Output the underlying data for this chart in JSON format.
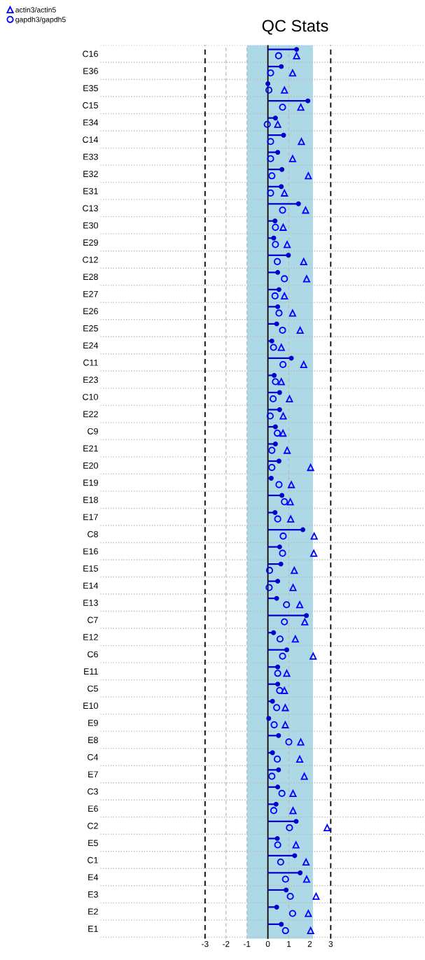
{
  "chart_data": {
    "type": "lollipop",
    "title": "QC Stats",
    "orientation": "horizontal",
    "categories": [
      "C16",
      "E36",
      "E35",
      "C15",
      "E34",
      "C14",
      "E33",
      "E32",
      "E31",
      "C13",
      "E30",
      "E29",
      "C12",
      "E28",
      "E27",
      "E26",
      "E25",
      "E24",
      "C11",
      "E23",
      "C10",
      "E22",
      "C9",
      "E21",
      "E20",
      "E19",
      "E18",
      "E17",
      "C8",
      "E16",
      "E15",
      "E14",
      "E13",
      "C7",
      "E12",
      "C6",
      "E11",
      "C5",
      "E10",
      "E9",
      "E8",
      "C4",
      "E7",
      "C3",
      "E6",
      "C2",
      "E5",
      "C1",
      "E4",
      "E3",
      "E2",
      "E1"
    ],
    "series": [
      {
        "color": "#0000cd",
        "values": [
          1.37,
          0.64,
          0.0,
          1.91,
          0.36,
          0.75,
          0.47,
          0.67,
          0.64,
          1.46,
          0.34,
          0.28,
          0.98,
          0.47,
          0.53,
          0.47,
          0.42,
          0.19,
          1.12,
          0.3,
          0.56,
          0.56,
          0.36,
          0.36,
          0.53,
          0.16,
          0.67,
          0.34,
          1.67,
          0.56,
          0.62,
          0.47,
          0.42,
          1.84,
          0.27,
          0.9,
          0.47,
          0.47,
          0.22,
          0.04,
          0.51,
          0.22,
          0.51,
          0.47,
          0.39,
          1.35,
          0.45,
          1.28,
          1.54,
          0.87,
          0.42,
          0.64
        ]
      },
      {
        "type": "scatter",
        "name": "actin3/actin5",
        "marker": "triangle",
        "color": "#0000ff",
        "values": [
          1.37,
          1.18,
          0.79,
          1.57,
          0.47,
          1.6,
          1.18,
          1.93,
          0.79,
          1.8,
          0.73,
          0.92,
          1.71,
          1.85,
          0.79,
          1.18,
          1.54,
          0.64,
          1.71,
          0.64,
          1.03,
          0.73,
          0.72,
          0.92,
          2.04,
          1.12,
          1.07,
          1.09,
          2.21,
          2.19,
          1.26,
          1.2,
          1.52,
          1.76,
          1.31,
          2.16,
          0.9,
          0.79,
          0.83,
          0.83,
          1.57,
          1.52,
          1.74,
          1.2,
          1.2,
          2.83,
          1.34,
          1.82,
          1.85,
          2.3,
          1.93,
          2.04
        ]
      },
      {
        "type": "scatter",
        "name": "gapdh3/gapdh5",
        "marker": "circle",
        "color": "#0000ff",
        "values": [
          0.51,
          0.13,
          0.05,
          0.7,
          -0.03,
          0.13,
          0.13,
          0.19,
          0.13,
          0.7,
          0.36,
          0.36,
          0.45,
          0.79,
          0.34,
          0.53,
          0.7,
          0.27,
          0.72,
          0.36,
          0.25,
          0.11,
          0.45,
          0.19,
          0.19,
          0.53,
          0.79,
          0.47,
          0.73,
          0.7,
          0.08,
          0.06,
          0.89,
          0.79,
          0.58,
          0.7,
          0.47,
          0.56,
          0.42,
          0.3,
          1.0,
          0.45,
          0.19,
          0.67,
          0.28,
          1.03,
          0.47,
          0.61,
          0.84,
          1.07,
          1.18,
          0.84
        ]
      }
    ],
    "xlim": [
      -8,
      7.5
    ],
    "xticks": [
      -3,
      -2,
      -1,
      0,
      1,
      2,
      3
    ],
    "bands": [
      {
        "axis": "x",
        "from": -1,
        "to": 2.15,
        "color": "#add8e6"
      }
    ],
    "ref_lines": [
      {
        "axis": "x",
        "value": -3,
        "color": "#000000",
        "line_style": "dashed"
      },
      {
        "axis": "x",
        "value": -2,
        "color": "#bbbbbb",
        "line_style": "dashed"
      },
      {
        "axis": "x",
        "value": -1,
        "color": "#bbbbbb",
        "line_style": "dashed"
      },
      {
        "axis": "x",
        "value": 0,
        "color": "#000000",
        "line_style": "solid"
      },
      {
        "axis": "x",
        "value": 1,
        "color": "#bbbbbb",
        "line_style": "dashed"
      },
      {
        "axis": "x",
        "value": 3,
        "color": "#000000",
        "line_style": "dashed"
      }
    ],
    "grid": "y",
    "legend": "top left"
  }
}
